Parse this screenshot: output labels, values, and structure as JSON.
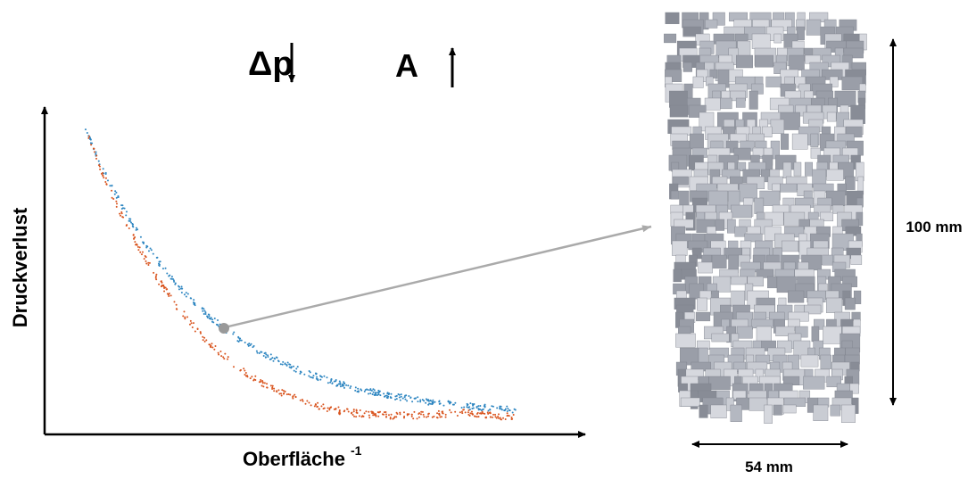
{
  "header": {
    "delta_p": "Δp",
    "area": "A"
  },
  "plot": {
    "y_label": "Druckverlust",
    "x_label": "Oberfläche",
    "x_label_exponent": "-1"
  },
  "model": {
    "height": "100 mm",
    "width": "54 mm"
  }
}
